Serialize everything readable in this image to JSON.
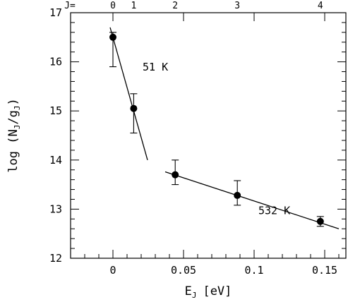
{
  "chart_data": {
    "type": "scatter",
    "x_label_main": "E",
    "x_label_sub": "J",
    "x_label_unit": "[eV]",
    "y_label_prefix": "log (N",
    "y_label_sub1": "J",
    "y_label_mid": "/g",
    "y_label_sub2": "J",
    "y_label_suffix": ")",
    "xlim": [
      -0.03,
      0.165
    ],
    "ylim": [
      12,
      17
    ],
    "x_ticks": [
      {
        "value": 0,
        "label": "0"
      },
      {
        "value": 0.05,
        "label": "0.05"
      },
      {
        "value": 0.1,
        "label": "0.1"
      },
      {
        "value": 0.15,
        "label": "0.15"
      }
    ],
    "y_ticks": [
      {
        "value": 12,
        "label": "12"
      },
      {
        "value": 13,
        "label": "13"
      },
      {
        "value": 14,
        "label": "14"
      },
      {
        "value": 15,
        "label": "15"
      },
      {
        "value": 16,
        "label": "16"
      },
      {
        "value": 17,
        "label": "17"
      }
    ],
    "top_axis": {
      "prefix": "J=",
      "ticks": [
        {
          "value": 0,
          "label": "0"
        },
        {
          "value": 0.0147,
          "label": "1"
        },
        {
          "value": 0.0441,
          "label": "2"
        },
        {
          "value": 0.0881,
          "label": "3"
        },
        {
          "value": 0.1469,
          "label": "4"
        }
      ]
    },
    "points": [
      {
        "x": 0,
        "y": 16.5,
        "err_low": 0.6,
        "err_high": 0.1
      },
      {
        "x": 0.0147,
        "y": 15.05,
        "err_low": 0.5,
        "err_high": 0.3
      },
      {
        "x": 0.0441,
        "y": 13.7,
        "err_low": 0.2,
        "err_high": 0.3
      },
      {
        "x": 0.0881,
        "y": 13.28,
        "err_low": 0.2,
        "err_high": 0.3
      },
      {
        "x": 0.1469,
        "y": 12.75,
        "err_low": 0.1,
        "err_high": 0.1
      }
    ],
    "fits": [
      {
        "x": [
          -0.002,
          0.0245
        ],
        "y": [
          16.7,
          14.0
        ]
      },
      {
        "x": [
          0.037,
          0.16
        ],
        "y": [
          13.76,
          12.6
        ]
      }
    ],
    "annotations": [
      {
        "text": "51 K",
        "x": 0.021,
        "y": 15.82
      },
      {
        "text": "532 K",
        "x": 0.103,
        "y": 12.9
      }
    ]
  }
}
